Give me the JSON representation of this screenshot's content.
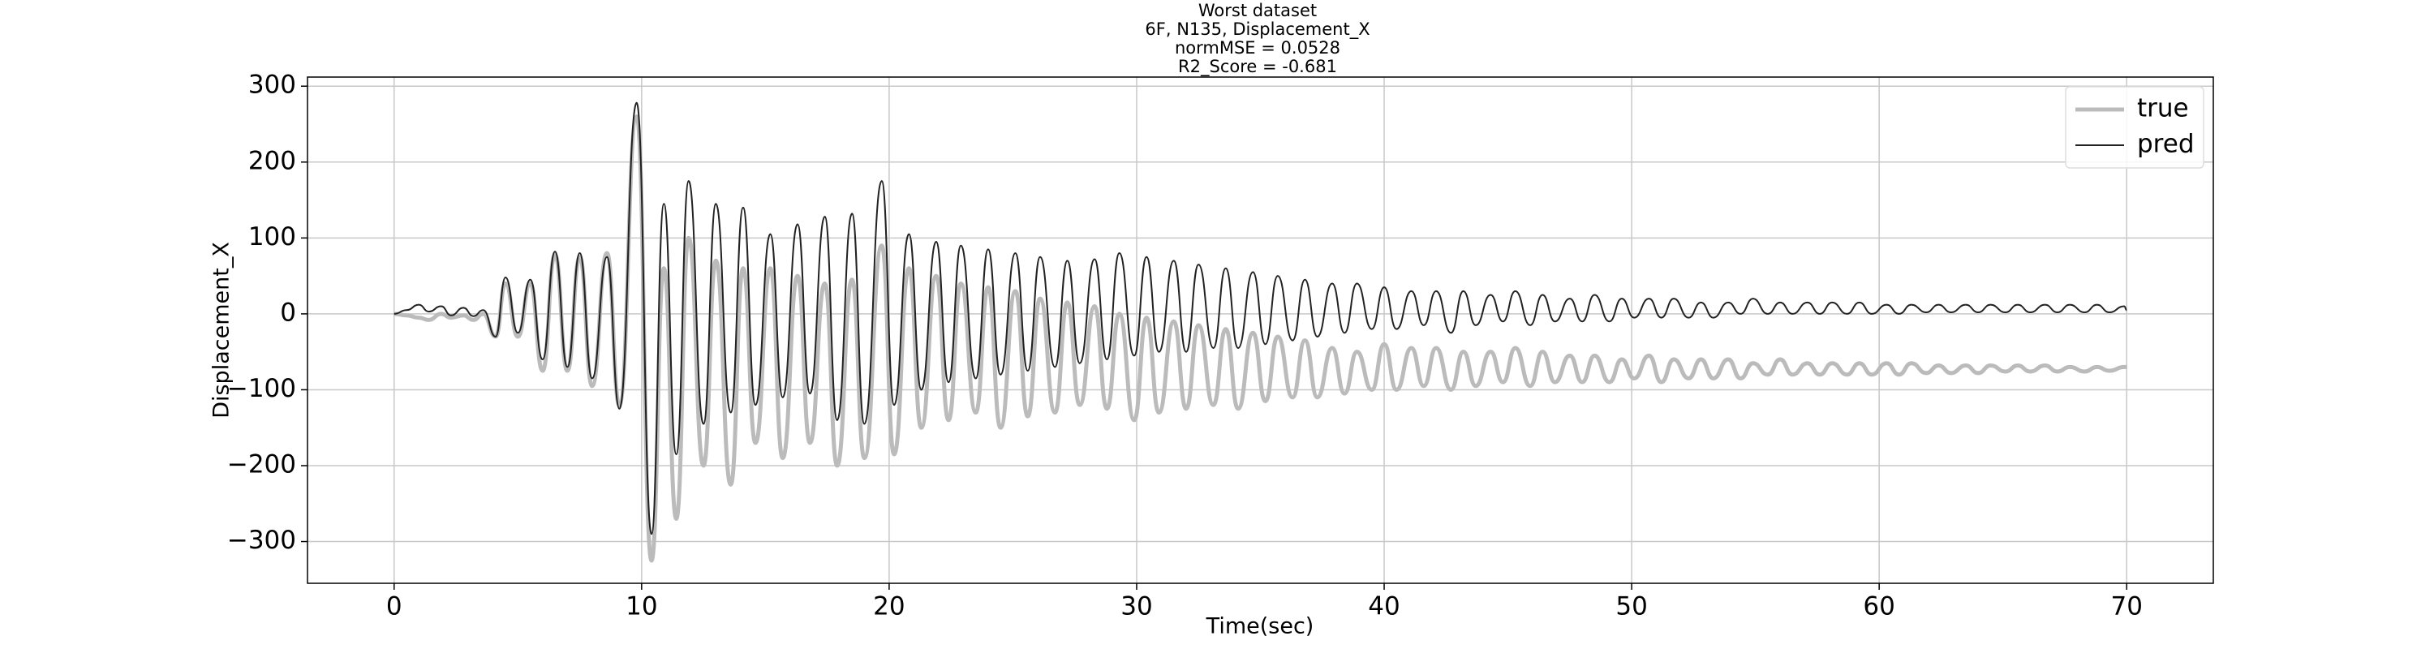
{
  "chart_data": {
    "type": "line",
    "title": [
      "Worst dataset",
      "6F, N135, Displacement_X",
      "normMSE = 0.0528",
      "R2_Score = -0.681"
    ],
    "x_label": "Time(sec)",
    "y_label": "Displacement_X",
    "x": [
      0,
      0.5,
      1.0,
      1.4,
      1.9,
      2.3,
      2.8,
      3.2,
      3.6,
      4.1,
      4.5,
      5.0,
      5.5,
      6.0,
      6.5,
      7.0,
      7.5,
      8.0,
      8.6,
      9.1,
      9.8,
      10.4,
      10.9,
      11.4,
      11.9,
      12.5,
      13.0,
      13.6,
      14.1,
      14.6,
      15.2,
      15.7,
      16.3,
      16.8,
      17.4,
      17.9,
      18.5,
      19.0,
      19.7,
      20.2,
      20.8,
      21.3,
      21.9,
      22.4,
      22.9,
      23.5,
      24.0,
      24.5,
      25.1,
      25.6,
      26.1,
      26.7,
      27.2,
      27.7,
      28.3,
      28.8,
      29.3,
      29.9,
      30.4,
      30.9,
      31.5,
      32.0,
      32.5,
      33.1,
      33.6,
      34.1,
      34.7,
      35.2,
      35.7,
      36.3,
      36.8,
      37.3,
      37.9,
      38.4,
      38.9,
      39.5,
      40.0,
      40.5,
      41.1,
      41.6,
      42.1,
      42.7,
      43.2,
      43.7,
      44.3,
      44.8,
      45.3,
      45.9,
      46.4,
      46.9,
      47.5,
      48.0,
      48.5,
      49.1,
      49.6,
      50.1,
      50.7,
      51.2,
      51.7,
      52.3,
      52.8,
      53.3,
      53.9,
      54.4,
      54.9,
      55.5,
      56.0,
      56.5,
      57.1,
      57.6,
      58.1,
      58.7,
      59.2,
      59.7,
      60.3,
      60.8,
      61.3,
      61.9,
      62.4,
      62.9,
      63.5,
      64.0,
      64.5,
      65.1,
      65.6,
      66.1,
      66.7,
      67.2,
      67.7,
      68.3,
      68.8,
      69.3,
      69.9,
      70.0
    ],
    "series": [
      {
        "name": "true",
        "color": "#bbbbbb",
        "values": [
          0,
          -2,
          -5,
          -8,
          0,
          -5,
          -2,
          -8,
          0,
          -30,
          40,
          -30,
          40,
          -75,
          78,
          -75,
          75,
          -95,
          80,
          -120,
          260,
          -325,
          60,
          -270,
          100,
          -200,
          70,
          -225,
          60,
          -170,
          60,
          -190,
          50,
          -170,
          40,
          -200,
          45,
          -190,
          90,
          -185,
          60,
          -150,
          50,
          -140,
          40,
          -130,
          35,
          -150,
          30,
          -135,
          20,
          -130,
          15,
          -120,
          10,
          -125,
          0,
          -140,
          -5,
          -130,
          -10,
          -125,
          -15,
          -120,
          -20,
          -125,
          -25,
          -115,
          -30,
          -110,
          -35,
          -110,
          -45,
          -105,
          -50,
          -100,
          -40,
          -100,
          -45,
          -95,
          -45,
          -100,
          -50,
          -95,
          -50,
          -90,
          -45,
          -95,
          -50,
          -90,
          -55,
          -90,
          -55,
          -90,
          -60,
          -85,
          -55,
          -90,
          -60,
          -85,
          -60,
          -85,
          -60,
          -85,
          -65,
          -80,
          -60,
          -80,
          -65,
          -80,
          -65,
          -80,
          -65,
          -80,
          -65,
          -80,
          -65,
          -78,
          -68,
          -78,
          -68,
          -78,
          -68,
          -76,
          -68,
          -76,
          -68,
          -76,
          -70,
          -76,
          -70,
          -75,
          -70,
          -70
        ]
      },
      {
        "name": "pred",
        "color": "#222222",
        "values": [
          0,
          5,
          12,
          3,
          10,
          -2,
          8,
          -3,
          5,
          -30,
          48,
          -25,
          45,
          -60,
          82,
          -70,
          80,
          -85,
          75,
          -125,
          278,
          -290,
          145,
          -185,
          175,
          -145,
          145,
          -130,
          140,
          -120,
          105,
          -110,
          118,
          -105,
          128,
          -140,
          132,
          -145,
          175,
          -120,
          105,
          -100,
          95,
          -90,
          90,
          -85,
          85,
          -80,
          80,
          -75,
          75,
          -70,
          70,
          -65,
          72,
          -60,
          80,
          -55,
          75,
          -50,
          70,
          -50,
          65,
          -45,
          60,
          -45,
          55,
          -40,
          50,
          -35,
          45,
          -30,
          40,
          -25,
          40,
          -20,
          35,
          -20,
          30,
          -15,
          30,
          -25,
          30,
          -15,
          25,
          -10,
          30,
          -15,
          25,
          -10,
          20,
          -10,
          25,
          -10,
          20,
          -5,
          20,
          -5,
          20,
          -5,
          15,
          -5,
          15,
          0,
          20,
          0,
          15,
          0,
          15,
          0,
          15,
          0,
          15,
          0,
          12,
          0,
          12,
          2,
          12,
          2,
          12,
          2,
          12,
          2,
          12,
          2,
          12,
          2,
          12,
          2,
          12,
          2,
          10,
          5
        ]
      }
    ],
    "xlim": [
      -3.5,
      73.5
    ],
    "xticks": [
      0,
      10,
      20,
      30,
      40,
      50,
      60,
      70
    ],
    "ylim": [
      -355,
      312
    ],
    "yticks": [
      {
        "value": -300,
        "label": "−300"
      },
      {
        "value": -200,
        "label": "−200"
      },
      {
        "value": -100,
        "label": "−100"
      },
      0,
      100,
      200,
      300
    ],
    "grid": true,
    "legend": "upper right"
  }
}
